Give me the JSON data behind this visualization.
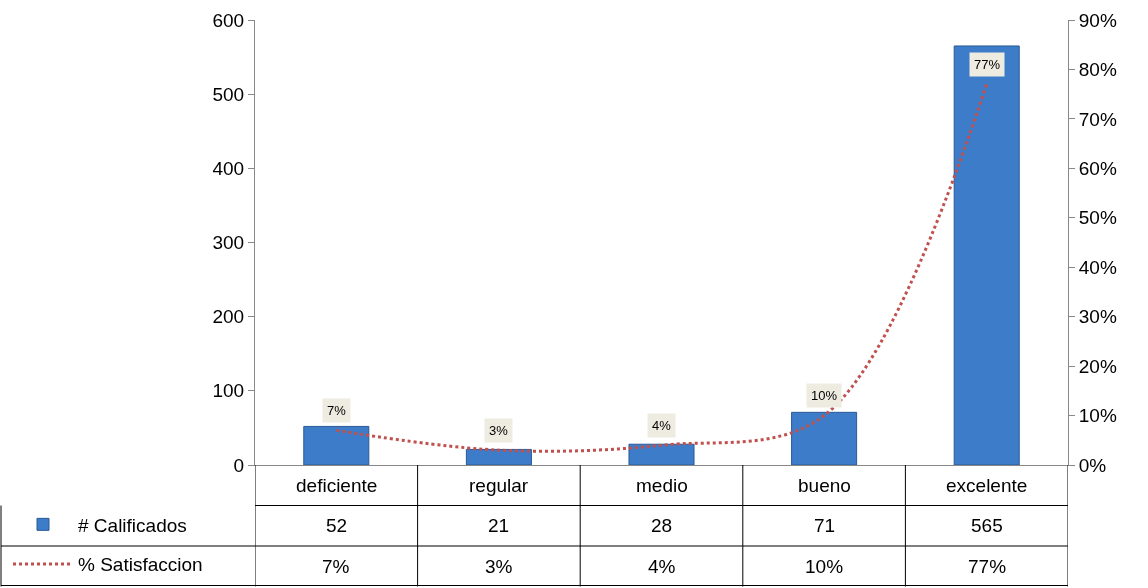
{
  "chart_data": {
    "type": "bar",
    "categories": [
      "deficiente",
      "regular",
      "medio",
      "bueno",
      "excelente"
    ],
    "series": [
      {
        "name": "# Calificados",
        "color": "#3d7cc9",
        "values": [
          52,
          21,
          28,
          71,
          565
        ],
        "value_labels": [
          "52",
          "21",
          "28",
          "71",
          "565"
        ]
      },
      {
        "name": "% Satisfaccion",
        "type": "line",
        "axis": "y2",
        "color": "#c0504d",
        "line_style": "dotted",
        "values": [
          7,
          3,
          4,
          10,
          77
        ],
        "value_labels": [
          "7%",
          "3%",
          "4%",
          "10%",
          "77%"
        ]
      }
    ],
    "ylim": [
      0,
      600
    ],
    "yticks": [
      0,
      100,
      200,
      300,
      400,
      500,
      600
    ],
    "y2lim": [
      0,
      90
    ],
    "y2ticks": [
      {
        "value": 0,
        "label": "0%"
      },
      {
        "value": 10,
        "label": "10%"
      },
      {
        "value": 20,
        "label": "20%"
      },
      {
        "value": 30,
        "label": "30%"
      },
      {
        "value": 40,
        "label": "40%"
      },
      {
        "value": 50,
        "label": "50%"
      },
      {
        "value": 60,
        "label": "60%"
      },
      {
        "value": 70,
        "label": "70%"
      },
      {
        "value": 80,
        "label": "80%"
      },
      {
        "value": 90,
        "label": "90%"
      }
    ],
    "legend": "bottom left"
  }
}
